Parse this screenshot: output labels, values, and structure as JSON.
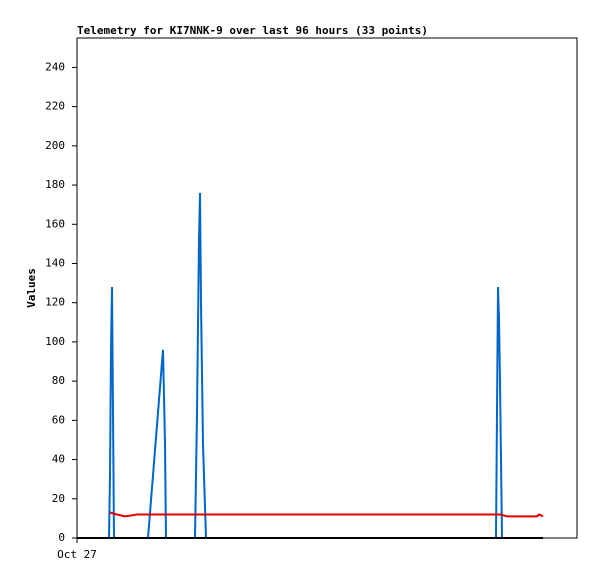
{
  "chart_data": {
    "type": "line",
    "title": "Telemetry for KI7NNK-9 over last 96 hours (33 points)",
    "y_label": "Values",
    "xlim": [
      0,
      100
    ],
    "xticks": [
      {
        "value": 0,
        "label": "Oct 27"
      }
    ],
    "ylim": [
      0,
      255
    ],
    "yticks": [
      0,
      20,
      40,
      60,
      80,
      100,
      120,
      140,
      160,
      180,
      200,
      220,
      240
    ],
    "series": [
      {
        "color": "#0066cc",
        "x": [
          6.4,
          6.6,
          6.8,
          7.0,
          7.2,
          7.4,
          14.2,
          17.2,
          17.6,
          17.8,
          23.6,
          24.0,
          24.4,
          24.6,
          24.8,
          25.2,
          25.8,
          83.8,
          84.0,
          84.2,
          84.4,
          84.6,
          85.0
        ],
        "values": [
          0,
          32,
          96,
          128,
          64,
          0,
          0,
          96,
          48,
          0,
          0,
          64,
          152,
          176,
          120,
          48,
          0,
          0,
          64,
          128,
          112,
          80,
          0
        ]
      },
      {
        "color": "#e00000",
        "x": [
          6.6,
          8,
          9.6,
          12,
          30,
          60,
          84.8,
          86,
          92,
          92.4,
          93.2
        ],
        "values": [
          13,
          12,
          11,
          12,
          12,
          12,
          12,
          11,
          11,
          12,
          11
        ]
      },
      {
        "color": "#000000",
        "x": [
          0,
          93.2
        ],
        "values": [
          0,
          0
        ]
      }
    ]
  }
}
